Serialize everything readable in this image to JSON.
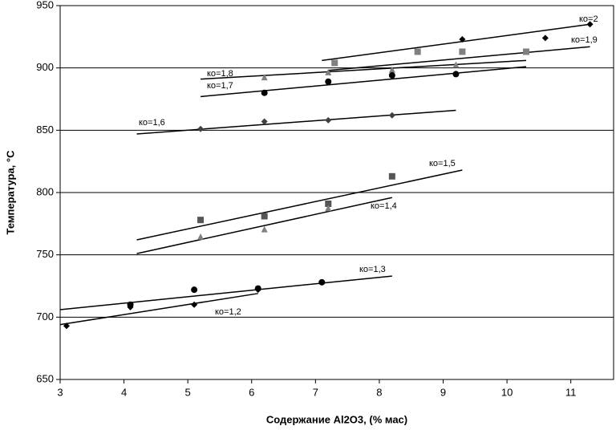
{
  "chart_data": {
    "type": "scatter",
    "x_label": "Содержание Al2O3, (% мас)",
    "y_label": "Температура, °С",
    "xlim": [
      3,
      11.67
    ],
    "xticks": [
      3,
      4,
      5,
      6,
      7,
      8,
      9,
      10,
      11
    ],
    "ylim": [
      650,
      950
    ],
    "yticks": [
      650,
      700,
      750,
      800,
      850,
      900,
      950
    ],
    "grid": true,
    "series": [
      {
        "name": "ко=2",
        "marker": "diamond",
        "color": "#000000",
        "x": [
          9.3,
          10.6,
          11.3
        ],
        "values": [
          923,
          924,
          935
        ],
        "trend_x": [
          7.1,
          11.3
        ],
        "trend": [
          906,
          935
        ]
      },
      {
        "name": "ко=1,9",
        "marker": "square",
        "color": "#808080",
        "x": [
          7.3,
          8.6,
          9.3,
          10.3
        ],
        "values": [
          904,
          913,
          913,
          913
        ],
        "trend_x": [
          7.2,
          11.3
        ],
        "trend": [
          898,
          917
        ]
      },
      {
        "name": "ко=1,8",
        "marker": "triangle",
        "color": "#808080",
        "x": [
          6.2,
          7.2,
          8.2,
          9.2
        ],
        "values": [
          892,
          896,
          898,
          902
        ],
        "trend_x": [
          5.2,
          10.3
        ],
        "trend": [
          891,
          906
        ]
      },
      {
        "name": "ко=1,7",
        "marker": "circle",
        "color": "#000000",
        "x": [
          6.2,
          7.2,
          8.2,
          9.2
        ],
        "values": [
          880,
          889,
          894,
          895
        ],
        "trend_x": [
          5.2,
          10.3
        ],
        "trend": [
          877,
          901
        ]
      },
      {
        "name": "ко=1,6",
        "marker": "diamond",
        "color": "#404040",
        "x": [
          5.2,
          6.2,
          7.2,
          8.2
        ],
        "values": [
          851,
          857,
          858,
          862
        ],
        "trend_x": [
          4.2,
          9.2
        ],
        "trend": [
          847,
          866
        ]
      },
      {
        "name": "ко=1,5",
        "marker": "square",
        "color": "#555555",
        "x": [
          5.2,
          6.2,
          7.2,
          8.2
        ],
        "values": [
          778,
          781,
          791,
          813
        ],
        "trend_x": [
          4.2,
          9.3
        ],
        "trend": [
          762,
          818
        ]
      },
      {
        "name": "ко=1,4",
        "marker": "triangle",
        "color": "#808080",
        "x": [
          5.2,
          6.2,
          7.2
        ],
        "values": [
          764,
          770,
          787
        ],
        "trend_x": [
          4.2,
          8.2
        ],
        "trend": [
          751,
          796
        ]
      },
      {
        "name": "ко=1,3",
        "marker": "circle",
        "color": "#000000",
        "x": [
          4.1,
          5.1,
          6.1,
          7.1
        ],
        "values": [
          710,
          722,
          723,
          728
        ],
        "trend_x": [
          3,
          8.2
        ],
        "trend": [
          706,
          733
        ]
      },
      {
        "name": "ко=1,2",
        "marker": "diamond",
        "color": "#000000",
        "x": [
          3.1,
          4.1,
          5.1,
          6.1
        ],
        "values": [
          693,
          708,
          710,
          722
        ],
        "trend_x": [
          3,
          6.1
        ],
        "trend": [
          694,
          719
        ]
      }
    ]
  }
}
